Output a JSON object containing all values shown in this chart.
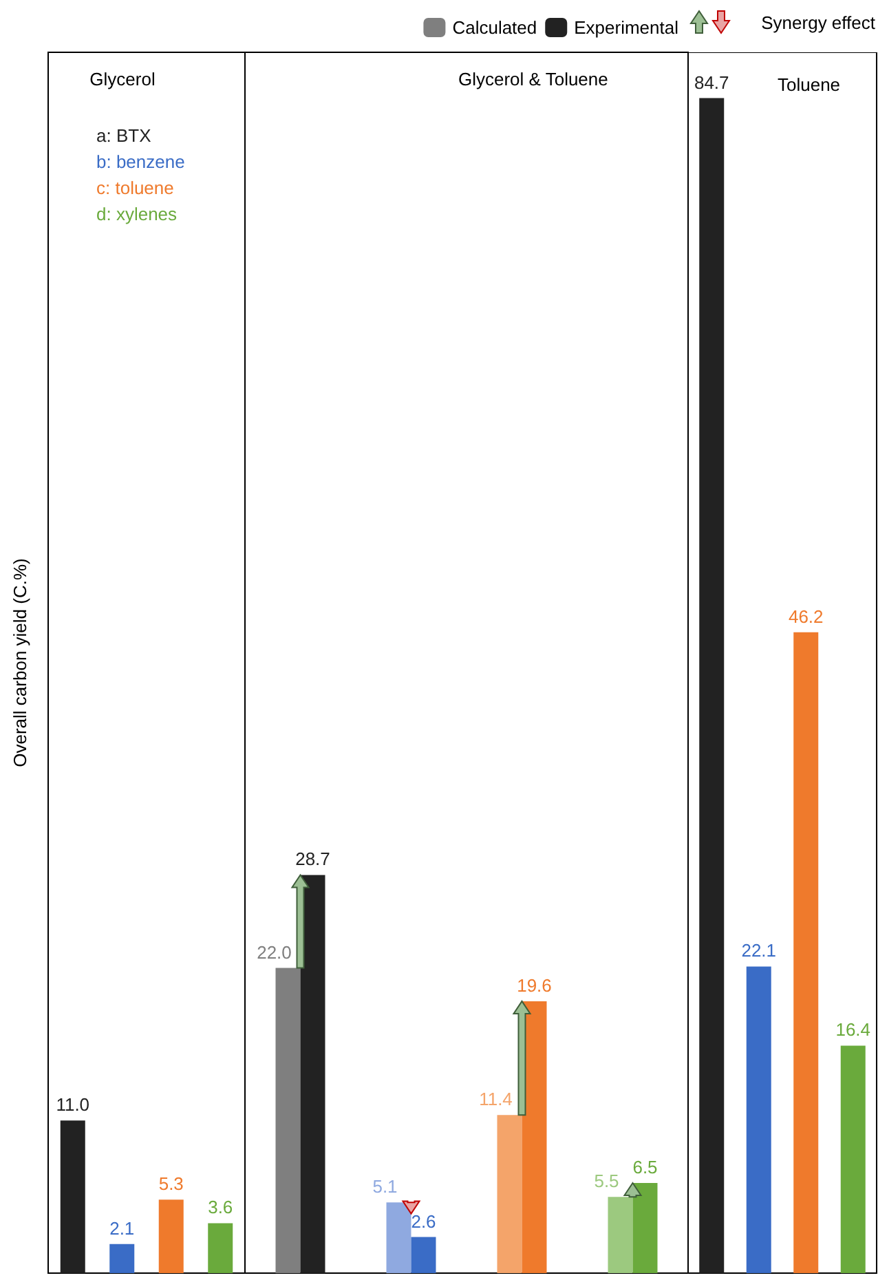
{
  "chart_data": [
    {
      "type": "bar",
      "title": "Glycerol",
      "ylabel": "Overall carbon yield (C.%)",
      "categories": [
        null,
        null,
        null,
        null
      ],
      "ylim": [
        0,
        88
      ],
      "tick_labels": false,
      "annotations": [
        "a: BTX",
        "b: benzene",
        "c: toluene",
        "d: xylenes"
      ],
      "series": [
        {
          "colors": [
            "#222222",
            "#3a6cc6",
            "#ef7a2c",
            "#6aaa3c"
          ],
          "values": [
            11.0,
            2.1,
            5.3,
            3.6
          ],
          "value_labels": [
            "11.0",
            "2.1",
            "5.3",
            "3.6"
          ]
        }
      ]
    },
    {
      "type": "bar",
      "title": "Glycerol & Toluene",
      "categories": [
        null,
        null,
        null,
        null
      ],
      "ylim": [
        0,
        88
      ],
      "tick_labels": false,
      "legend": "top right",
      "annotations": [
        "Synergy effect"
      ],
      "series": [
        {
          "name": "Calculated",
          "colors": [
            "#7f7f7f",
            "#8fa9e0",
            "#f4a46a",
            "#9cc97f"
          ],
          "values": [
            22.0,
            5.1,
            11.4,
            5.5
          ],
          "value_labels": [
            "22.0",
            "5.1",
            "11.4",
            "5.5"
          ]
        },
        {
          "name": "Experimental",
          "colors": [
            "#222222",
            "#3a6cc6",
            "#ef7a2c",
            "#6aaa3c"
          ],
          "values": [
            28.7,
            2.6,
            19.6,
            6.5
          ],
          "value_labels": [
            "28.7",
            "2.6",
            "19.6",
            "6.5"
          ]
        }
      ]
    },
    {
      "type": "bar",
      "title": "Toluene",
      "categories": [
        null,
        null,
        null,
        null
      ],
      "ylim": [
        0,
        88
      ],
      "tick_labels": false,
      "series": [
        {
          "colors": [
            "#222222",
            "#3a6cc6",
            "#ef7a2c",
            "#6aaa3c"
          ],
          "values": [
            84.7,
            22.1,
            46.2,
            16.4
          ],
          "value_labels": [
            "84.7",
            "22.1",
            "46.2",
            "16.4"
          ]
        }
      ]
    }
  ]
}
